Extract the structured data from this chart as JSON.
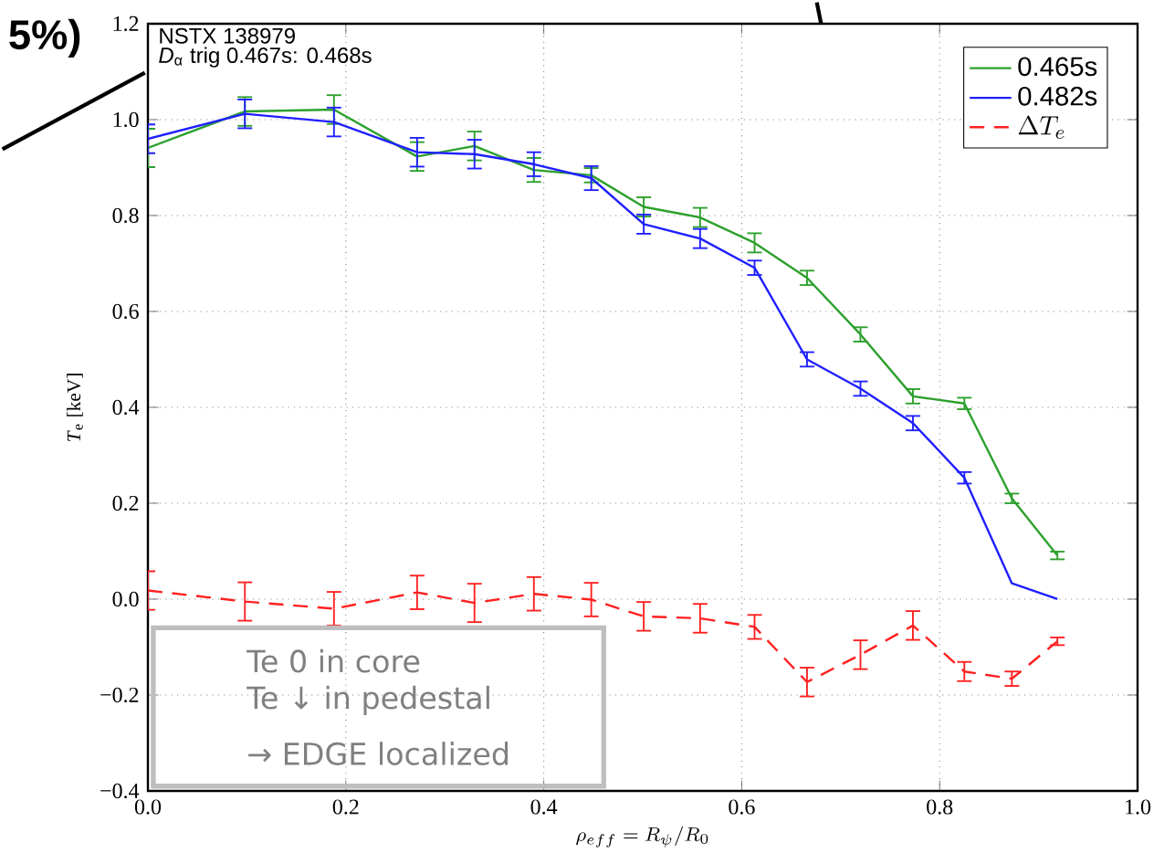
{
  "chart_data": {
    "type": "line",
    "xlabel": "\\rho_{eff} = R_\\psi/R_0",
    "ylabel": "*T*$_{e}$ [keV]",
    "x": [
      0.0,
      0.098,
      0.188,
      0.272,
      0.33,
      0.39,
      0.448,
      0.501,
      0.558,
      0.613,
      0.666,
      0.72,
      0.773,
      0.825,
      0.873,
      0.919
    ],
    "series": [
      {
        "name": "0.465s",
        "color": "#2ca02c",
        "values": [
          0.941,
          1.017,
          1.021,
          0.923,
          0.945,
          0.895,
          0.884,
          0.818,
          0.796,
          0.743,
          0.67,
          0.552,
          0.423,
          0.408,
          0.21,
          0.091
        ],
        "errors": [
          0.04,
          0.03,
          0.03,
          0.03,
          0.03,
          0.025,
          0.015,
          0.02,
          0.02,
          0.02,
          0.015,
          0.015,
          0.015,
          0.012,
          0.01,
          0.008
        ]
      },
      {
        "name": "0.482s",
        "color": "#1f1fff",
        "values": [
          0.96,
          1.012,
          0.995,
          0.932,
          0.928,
          0.907,
          0.878,
          0.782,
          0.752,
          0.691,
          0.5,
          0.439,
          0.367,
          0.253,
          0.033,
          0.0
        ],
        "errors": [
          0.03,
          0.03,
          0.03,
          0.03,
          0.03,
          0.025,
          0.025,
          0.02,
          0.02,
          0.015,
          0.015,
          0.015,
          0.015,
          0.012,
          null,
          null
        ]
      },
      {
        "name": "\\Delta T_e",
        "color": "#ff2020",
        "line_style": "dashed",
        "values": [
          0.018,
          -0.005,
          -0.02,
          0.014,
          -0.008,
          0.011,
          -0.001,
          -0.036,
          -0.04,
          -0.058,
          -0.173,
          -0.116,
          -0.055,
          -0.151,
          -0.166,
          -0.088
        ],
        "errors": [
          0.04,
          0.04,
          0.035,
          0.035,
          0.04,
          0.035,
          0.035,
          0.03,
          0.03,
          0.025,
          0.03,
          0.03,
          0.03,
          0.02,
          0.015,
          0.008
        ]
      }
    ],
    "xlim": [
      0.0,
      1.0
    ],
    "ylim": [
      -0.4,
      1.2
    ],
    "xticks": [
      {
        "value": 0.0,
        "label": "0.0"
      },
      {
        "value": 0.2,
        "label": "0.2"
      },
      {
        "value": 0.4,
        "label": "0.4"
      },
      {
        "value": 0.6,
        "label": "0.6"
      },
      {
        "value": 0.8,
        "label": "0.8"
      },
      {
        "value": 1.0,
        "label": "1.0"
      }
    ],
    "yticks": [
      {
        "value": -0.4,
        "label": "−0.4"
      },
      {
        "value": -0.2,
        "label": "−0.2"
      },
      {
        "value": 0.0,
        "label": "0.0"
      },
      {
        "value": 0.2,
        "label": "0.2"
      },
      {
        "value": 0.4,
        "label": "0.4"
      },
      {
        "value": 0.6,
        "label": "0.6"
      },
      {
        "value": 0.8,
        "label": "0.8"
      },
      {
        "value": 1.0,
        "label": "1.0"
      },
      {
        "value": 1.2,
        "label": "1.2"
      }
    ],
    "grid": true,
    "legend": "top right",
    "marker": "none",
    "annotations": [
      "NSTX 138979",
      "*D*$_{α}$ trig 0.467s: 0.468s",
      "Te 0 in core",
      "Te ↓ in pedestal",
      "→ EDGE localized",
      "5%)"
    ]
  }
}
